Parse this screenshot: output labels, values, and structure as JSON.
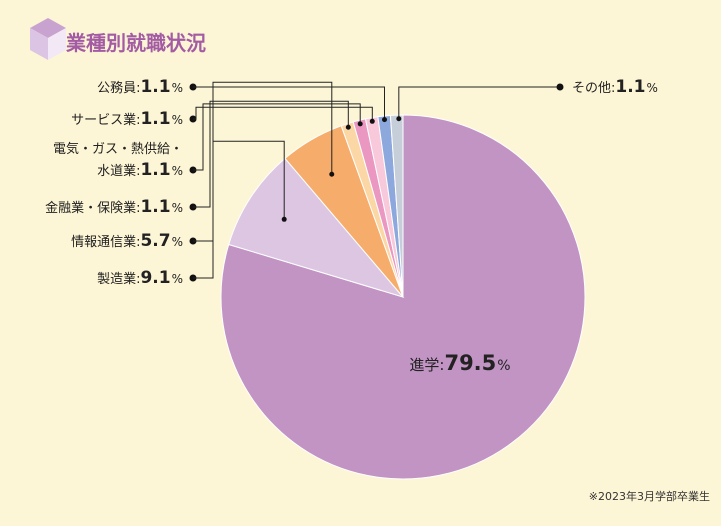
{
  "chart_data": {
    "type": "pie",
    "title": "業種別就職状況",
    "unit": "%",
    "slices": [
      {
        "label": "進学",
        "value": 79.5,
        "color": "#c294c4"
      },
      {
        "label": "製造業",
        "value": 9.1,
        "color": "#dcc6e2"
      },
      {
        "label": "情報通信業",
        "value": 5.7,
        "color": "#f6ad6b"
      },
      {
        "label": "金融業・保険業",
        "value": 1.1,
        "color": "#fcd7a6"
      },
      {
        "label_lines": [
          "電気・ガス・熱供給・",
          "水道業"
        ],
        "value": 1.1,
        "color": "#ea97c2"
      },
      {
        "label": "サービス業",
        "value": 1.1,
        "color": "#f7c9da"
      },
      {
        "label": "公務員",
        "value": 1.1,
        "color": "#8da8dc"
      },
      {
        "label": "その他",
        "value": 1.1,
        "color": "#c6cfd9"
      }
    ],
    "footnote": "※2023年3月学部卒業生"
  }
}
